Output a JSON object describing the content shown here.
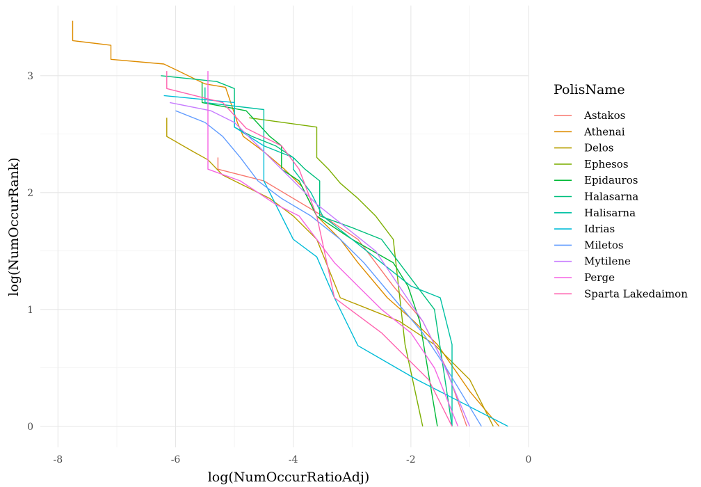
{
  "chart_data": {
    "type": "line",
    "title": "",
    "xlabel": "log(NumOccurRatioAdj)",
    "ylabel": "log(NumOccurRank)",
    "xlim": [
      -8.3,
      0.0
    ],
    "ylim": [
      -0.18,
      3.6
    ],
    "x_ticks": [
      -8,
      -6,
      -4,
      -2,
      0
    ],
    "x_tick_labels": [
      "-8",
      "-6",
      "-4",
      "-2",
      "0"
    ],
    "y_ticks": [
      0,
      1,
      2,
      3
    ],
    "y_tick_labels": [
      "0",
      "1",
      "2",
      "3"
    ],
    "grid": true,
    "legend_title": "PolisName",
    "legend_position": "right",
    "series": [
      {
        "name": "Astakos",
        "color": "#F8766D",
        "x": [
          -5.28,
          -5.28,
          -4.5,
          -4.0,
          -3.5,
          -2.9,
          -2.3,
          -1.8,
          -1.4,
          -1.05
        ],
        "y": [
          2.3,
          2.2,
          2.1,
          1.95,
          1.8,
          1.6,
          1.2,
          0.9,
          0.5,
          0.0
        ]
      },
      {
        "name": "Athenai",
        "color": "#DE8C00",
        "x": [
          -7.75,
          -7.75,
          -7.1,
          -7.1,
          -6.2,
          -5.95,
          -5.5,
          -5.15,
          -5.05,
          -4.95,
          -4.85,
          -4.5,
          -4.15,
          -3.85,
          -3.6,
          -3.2,
          -2.9,
          -2.4,
          -1.95,
          -1.55,
          -1.0,
          -0.5
        ],
        "y": [
          3.47,
          3.3,
          3.26,
          3.14,
          3.1,
          3.04,
          2.93,
          2.9,
          2.75,
          2.6,
          2.48,
          2.35,
          2.2,
          2.05,
          1.8,
          1.6,
          1.4,
          1.1,
          0.9,
          0.7,
          0.3,
          0.0
        ]
      },
      {
        "name": "Delos",
        "color": "#B79F00",
        "x": [
          -6.15,
          -6.15,
          -5.7,
          -5.45,
          -5.2,
          -4.8,
          -4.4,
          -4.0,
          -3.6,
          -3.2,
          -2.7,
          -2.2,
          -1.6,
          -1.0,
          -0.6
        ],
        "y": [
          2.64,
          2.48,
          2.35,
          2.28,
          2.15,
          2.05,
          1.95,
          1.8,
          1.6,
          1.1,
          1.0,
          0.9,
          0.7,
          0.4,
          0.0
        ]
      },
      {
        "name": "Ephesos",
        "color": "#7CAE00",
        "x": [
          -4.75,
          -4.75,
          -3.6,
          -3.6,
          -3.4,
          -3.2,
          -2.9,
          -2.6,
          -2.3,
          -2.1,
          -1.8
        ],
        "y": [
          2.64,
          2.64,
          2.56,
          2.3,
          2.2,
          2.08,
          1.95,
          1.8,
          1.6,
          0.7,
          0.0
        ]
      },
      {
        "name": "Epidauros",
        "color": "#00BA38",
        "x": [
          -5.55,
          -5.55,
          -4.8,
          -4.4,
          -4.2,
          -4.2,
          -3.9,
          -3.6,
          -3.0,
          -2.3,
          -2.05,
          -1.85,
          -1.55
        ],
        "y": [
          2.94,
          2.77,
          2.7,
          2.48,
          2.4,
          2.2,
          2.1,
          1.8,
          1.6,
          1.4,
          1.2,
          0.9,
          0.0
        ]
      },
      {
        "name": "Halasarna",
        "color": "#00BF7D",
        "x": [
          -6.25,
          -5.3,
          -5.0,
          -5.0,
          -4.7,
          -4.3,
          -4.0,
          -3.8,
          -3.55,
          -3.55,
          -3.0,
          -2.5,
          -2.2,
          -1.9,
          -1.6,
          -1.3
        ],
        "y": [
          3.0,
          2.95,
          2.89,
          2.56,
          2.48,
          2.4,
          2.3,
          2.2,
          2.1,
          1.8,
          1.7,
          1.6,
          1.4,
          1.2,
          1.0,
          0.0
        ]
      },
      {
        "name": "Halisarna",
        "color": "#00C1A3",
        "x": [
          -5.5,
          -5.5,
          -4.5,
          -4.5,
          -4.0,
          -4.0,
          -3.7,
          -3.5,
          -3.0,
          -2.5,
          -2.0,
          -1.5,
          -1.3,
          -1.3
        ],
        "y": [
          2.9,
          2.77,
          2.71,
          2.4,
          2.3,
          2.2,
          2.0,
          1.8,
          1.6,
          1.4,
          1.2,
          1.1,
          0.7,
          0.0
        ]
      },
      {
        "name": "Idrias",
        "color": "#00BCD8",
        "x": [
          -6.2,
          -6.2,
          -5.0,
          -5.0,
          -4.5,
          -4.5,
          -4.0,
          -3.6,
          -3.3,
          -2.9,
          -2.9,
          -1.9,
          -0.35
        ],
        "y": [
          2.83,
          2.83,
          2.77,
          2.56,
          2.4,
          2.1,
          1.6,
          1.45,
          1.1,
          0.69,
          0.69,
          0.4,
          0.0
        ]
      },
      {
        "name": "Miletos",
        "color": "#619CFF",
        "x": [
          -6.0,
          -5.5,
          -5.2,
          -4.9,
          -4.6,
          -4.2,
          -3.7,
          -3.2,
          -2.8,
          -2.3,
          -1.8,
          -1.4,
          -0.8
        ],
        "y": [
          2.7,
          2.6,
          2.48,
          2.3,
          2.1,
          1.95,
          1.8,
          1.6,
          1.4,
          1.1,
          0.8,
          0.5,
          0.0
        ]
      },
      {
        "name": "Mytilene",
        "color": "#C77CFF",
        "x": [
          -6.1,
          -5.4,
          -5.0,
          -4.7,
          -4.4,
          -4.0,
          -3.6,
          -3.1,
          -2.6,
          -2.2,
          -1.8,
          -1.5,
          -1.0
        ],
        "y": [
          2.77,
          2.7,
          2.6,
          2.45,
          2.3,
          2.1,
          1.9,
          1.7,
          1.5,
          1.2,
          0.9,
          0.6,
          0.0
        ]
      },
      {
        "name": "Perge",
        "color": "#F564E3",
        "x": [
          -5.45,
          -5.45,
          -5.45,
          -4.9,
          -4.6,
          -4.3,
          -3.9,
          -3.6,
          -3.3,
          -2.9,
          -2.5,
          -2.0,
          -1.6,
          -1.2
        ],
        "y": [
          3.04,
          2.6,
          2.2,
          2.1,
          2.0,
          1.9,
          1.8,
          1.6,
          1.4,
          1.2,
          1.0,
          0.8,
          0.5,
          0.0
        ]
      },
      {
        "name": "Sparta Lakedaimon",
        "color": "#FF64B0",
        "x": [
          -6.15,
          -6.15,
          -5.2,
          -4.8,
          -4.2,
          -3.9,
          -3.6,
          -3.3,
          -2.9,
          -2.5,
          -2.1,
          -1.7,
          -1.3
        ],
        "y": [
          3.04,
          2.89,
          2.77,
          2.55,
          2.4,
          2.2,
          1.8,
          1.1,
          0.95,
          0.8,
          0.6,
          0.4,
          0.0
        ]
      }
    ]
  }
}
